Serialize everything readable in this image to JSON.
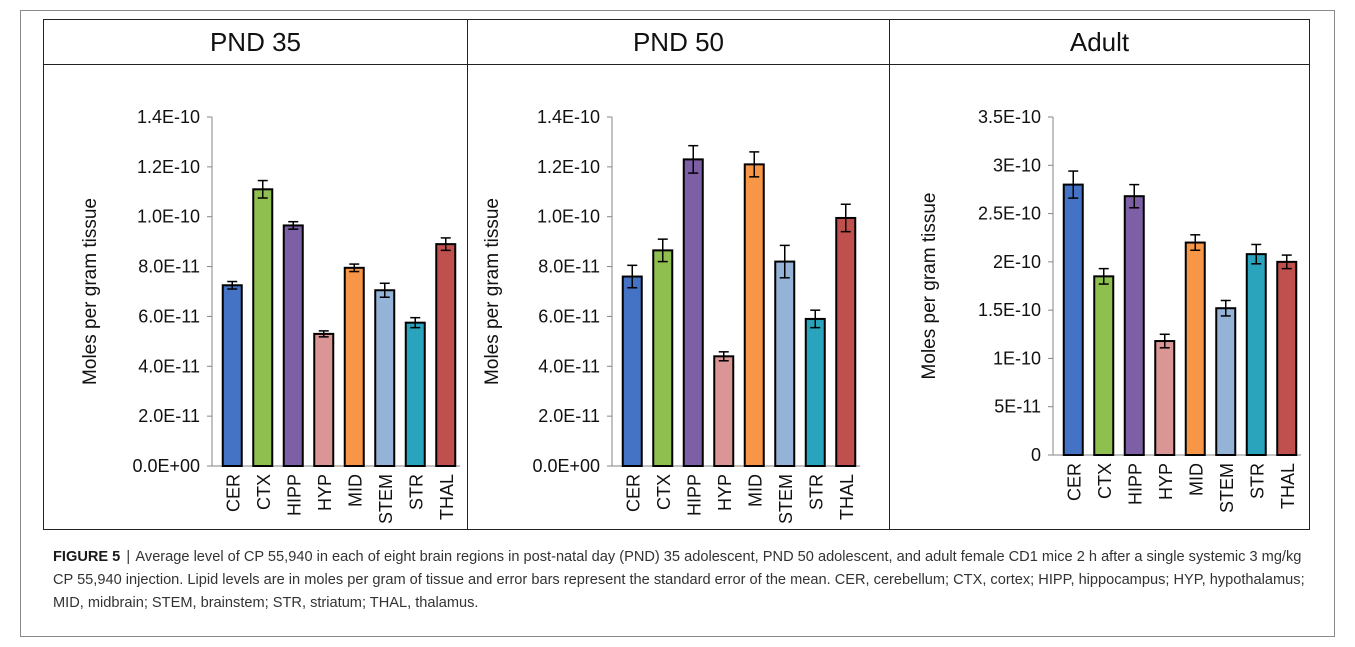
{
  "colors": {
    "CER": "#4472c4",
    "CTX": "#8fbf4e",
    "HIPP": "#7c5fa5",
    "HYP": "#d99694",
    "MID": "#f79646",
    "STEM": "#95b3d7",
    "STR": "#2aa3bd",
    "THAL": "#c0504d"
  },
  "chart_data": [
    {
      "type": "bar",
      "title": "PND 35",
      "ylabel": "Moles per gram tissue",
      "categories": [
        "CER",
        "CTX",
        "HIPP",
        "HYP",
        "MID",
        "STEM",
        "STR",
        "THAL"
      ],
      "values": [
        7.25e-11,
        1.11e-10,
        9.65e-11,
        5.3e-11,
        7.95e-11,
        7.05e-11,
        5.75e-11,
        8.9e-11
      ],
      "errors": [
        1.5e-12,
        3.5e-12,
        1.5e-12,
        1.2e-12,
        1.5e-12,
        2.8e-12,
        2e-12,
        2.5e-12
      ],
      "ylim": [
        0,
        1.4e-10
      ],
      "yticks": [
        0,
        2e-11,
        4e-11,
        6e-11,
        8e-11,
        1e-10,
        1.2e-10,
        1.4e-10
      ],
      "yticklabels": [
        "0.0E+00",
        "2.0E-11",
        "4.0E-11",
        "6.0E-11",
        "8.0E-11",
        "1.0E-10",
        "1.2E-10",
        "1.4E-10"
      ],
      "grid": false,
      "error_bars": true
    },
    {
      "type": "bar",
      "title": "PND 50",
      "ylabel": "Moles per gram tissue",
      "categories": [
        "CER",
        "CTX",
        "HIPP",
        "HYP",
        "MID",
        "STEM",
        "STR",
        "THAL"
      ],
      "values": [
        7.6e-11,
        8.65e-11,
        1.23e-10,
        4.4e-11,
        1.21e-10,
        8.2e-11,
        5.9e-11,
        9.95e-11
      ],
      "errors": [
        4.5e-12,
        4.5e-12,
        5.5e-12,
        1.8e-12,
        5e-12,
        6.5e-12,
        3.5e-12,
        5.5e-12
      ],
      "ylim": [
        0,
        1.4e-10
      ],
      "yticks": [
        0,
        2e-11,
        4e-11,
        6e-11,
        8e-11,
        1e-10,
        1.2e-10,
        1.4e-10
      ],
      "yticklabels": [
        "0.0E+00",
        "2.0E-11",
        "4.0E-11",
        "6.0E-11",
        "8.0E-11",
        "1.0E-10",
        "1.2E-10",
        "1.4E-10"
      ],
      "grid": false,
      "error_bars": true
    },
    {
      "type": "bar",
      "title": "Adult",
      "ylabel": "Moles per gram tissue",
      "categories": [
        "CER",
        "CTX",
        "HIPP",
        "HYP",
        "MID",
        "STEM",
        "STR",
        "THAL"
      ],
      "values": [
        2.8e-10,
        1.85e-10,
        2.68e-10,
        1.18e-10,
        2.2e-10,
        1.52e-10,
        2.08e-10,
        2e-10
      ],
      "errors": [
        1.4e-11,
        8e-12,
        1.2e-11,
        7e-12,
        8e-12,
        8e-12,
        1e-11,
        7e-12
      ],
      "ylim": [
        0,
        3.5e-10
      ],
      "yticks": [
        0,
        5e-11,
        1e-10,
        1.5e-10,
        2e-10,
        2.5e-10,
        3e-10,
        3.5e-10
      ],
      "yticklabels": [
        "0",
        "5E-11",
        "1E-10",
        "1.5E-10",
        "2E-10",
        "2.5E-10",
        "3E-10",
        "3.5E-10"
      ],
      "grid": false,
      "error_bars": true
    }
  ],
  "caption": {
    "label": "FIGURE 5",
    "separator": "|",
    "text": "Average level of CP 55,940 in each of eight brain regions in post-natal day (PND) 35 adolescent, PND 50 adolescent, and adult female CD1 mice 2 h after a single systemic 3 mg/kg CP 55,940 injection. Lipid levels are in moles per gram of tissue and error bars represent the standard error of the mean. CER, cerebellum; CTX, cortex; HIPP, hippocampus; HYP, hypothalamus; MID, midbrain; STEM, brainstem; STR, striatum; THAL, thalamus."
  }
}
